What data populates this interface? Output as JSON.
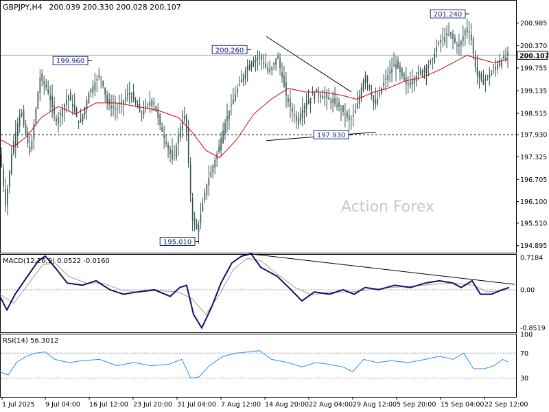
{
  "chart_data": {
    "type": "candlestick",
    "symbol_header": "GBPJPY,H4",
    "ohlc_header": "200.039 200.330 200.028 200.107",
    "watermark": "Action Forex",
    "price_axis": {
      "range": [
        194.7,
        201.6
      ],
      "ticks": [
        "200.985",
        "200.370",
        "199.755",
        "199.135",
        "198.515",
        "197.930",
        "197.325",
        "196.705",
        "196.100",
        "195.510",
        "194.895"
      ],
      "tick_values": [
        200.985,
        200.37,
        199.755,
        199.135,
        198.515,
        197.93,
        197.325,
        196.705,
        196.1,
        195.51,
        194.895
      ],
      "current_price": "200.107",
      "current_price_value": 200.107
    },
    "time_axis_labels": [
      "1 Jul 2025",
      "9 Jul 04:00",
      "16 Jul 12:00",
      "23 Jul 20:00",
      "31 Jul 04:00",
      "7 Aug 12:00",
      "14 Aug 20:00",
      "22 Aug 04:00",
      "29 Aug 12:00",
      "5 Sep 20:00",
      "15 Sep 04:00",
      "22 Sep 12:00"
    ],
    "price_series_bars": 250,
    "price_path": [
      [
        0,
        197.4
      ],
      [
        8,
        196.0
      ],
      [
        18,
        197.6
      ],
      [
        30,
        198.6
      ],
      [
        44,
        197.4
      ],
      [
        58,
        199.5
      ],
      [
        68,
        199.2
      ],
      [
        82,
        198.3
      ],
      [
        100,
        199.0
      ],
      [
        116,
        198.2
      ],
      [
        130,
        199.1
      ],
      [
        146,
        199.6
      ],
      [
        156,
        198.8
      ],
      [
        170,
        198.6
      ],
      [
        188,
        199.1
      ],
      [
        205,
        198.5
      ],
      [
        222,
        198.9
      ],
      [
        238,
        197.9
      ],
      [
        252,
        197.2
      ],
      [
        262,
        198.1
      ],
      [
        270,
        198.5
      ],
      [
        280,
        195.6
      ],
      [
        288,
        195.3
      ],
      [
        300,
        196.5
      ],
      [
        316,
        197.4
      ],
      [
        330,
        198.4
      ],
      [
        346,
        199.2
      ],
      [
        360,
        199.8
      ],
      [
        378,
        200.1
      ],
      [
        392,
        199.6
      ],
      [
        404,
        200.1
      ],
      [
        418,
        198.9
      ],
      [
        432,
        198.3
      ],
      [
        446,
        198.8
      ],
      [
        460,
        199.1
      ],
      [
        478,
        198.9
      ],
      [
        494,
        198.7
      ],
      [
        510,
        198.3
      ],
      [
        518,
        198.6
      ],
      [
        532,
        199.6
      ],
      [
        546,
        198.7
      ],
      [
        560,
        199.4
      ],
      [
        576,
        199.9
      ],
      [
        592,
        199.3
      ],
      [
        610,
        199.6
      ],
      [
        628,
        199.9
      ],
      [
        640,
        200.5
      ],
      [
        656,
        200.7
      ],
      [
        668,
        200.3
      ],
      [
        680,
        200.9
      ],
      [
        686,
        200.6
      ],
      [
        694,
        199.6
      ],
      [
        702,
        199.4
      ],
      [
        716,
        199.6
      ],
      [
        726,
        199.9
      ],
      [
        740,
        200.1
      ]
    ],
    "moving_average_path": [
      [
        0,
        197.8
      ],
      [
        20,
        197.6
      ],
      [
        40,
        197.9
      ],
      [
        60,
        198.4
      ],
      [
        85,
        198.7
      ],
      [
        110,
        198.5
      ],
      [
        140,
        198.8
      ],
      [
        170,
        198.8
      ],
      [
        200,
        198.7
      ],
      [
        230,
        198.6
      ],
      [
        260,
        198.4
      ],
      [
        280,
        198.0
      ],
      [
        300,
        197.5
      ],
      [
        320,
        197.3
      ],
      [
        345,
        197.8
      ],
      [
        370,
        198.5
      ],
      [
        395,
        198.9
      ],
      [
        420,
        199.2
      ],
      [
        445,
        199.1
      ],
      [
        470,
        199.1
      ],
      [
        500,
        199.0
      ],
      [
        520,
        198.9
      ],
      [
        545,
        199.1
      ],
      [
        565,
        199.2
      ],
      [
        590,
        199.4
      ],
      [
        615,
        199.5
      ],
      [
        640,
        199.7
      ],
      [
        660,
        199.9
      ],
      [
        680,
        200.1
      ],
      [
        700,
        200.0
      ],
      [
        720,
        199.9
      ],
      [
        740,
        200.0
      ]
    ],
    "annotations": [
      {
        "label": "199.960",
        "value": 199.96,
        "bar": 130
      },
      {
        "label": "200.260",
        "value": 200.26,
        "bar": 362
      },
      {
        "label": "201.240",
        "value": 201.24,
        "bar": 680
      },
      {
        "label": "197.930",
        "value": 197.93,
        "bar": 510
      },
      {
        "label": "195.010",
        "value": 195.01,
        "bar": 286
      }
    ],
    "horizontal_lines": [
      {
        "value": 197.93,
        "style": "dashed"
      },
      {
        "value": 200.107,
        "style": "solid"
      }
    ],
    "trendlines": [
      {
        "from": [
          388,
          200.62
        ],
        "to": [
          512,
          199.1
        ]
      },
      {
        "from": [
          388,
          197.77
        ],
        "to": [
          548,
          198.0
        ]
      }
    ],
    "macd": {
      "header": "MACD(12,26,9) 0.0522 -0.0160",
      "range": [
        -0.95,
        0.78
      ],
      "ticks": [
        "0.7184",
        "0.00",
        "-0.8519"
      ],
      "tick_values": [
        0.7184,
        0.0,
        -0.8519
      ],
      "main_path": [
        [
          0,
          -0.15
        ],
        [
          10,
          -0.45
        ],
        [
          22,
          -0.1
        ],
        [
          40,
          0.3
        ],
        [
          56,
          0.65
        ],
        [
          66,
          0.75
        ],
        [
          80,
          0.5
        ],
        [
          98,
          0.15
        ],
        [
          120,
          0.1
        ],
        [
          140,
          0.2
        ],
        [
          160,
          0.0
        ],
        [
          180,
          -0.1
        ],
        [
          200,
          -0.05
        ],
        [
          225,
          0.0
        ],
        [
          248,
          -0.15
        ],
        [
          262,
          0.05
        ],
        [
          272,
          0.1
        ],
        [
          282,
          -0.55
        ],
        [
          294,
          -0.85
        ],
        [
          308,
          -0.4
        ],
        [
          322,
          0.15
        ],
        [
          338,
          0.6
        ],
        [
          352,
          0.75
        ],
        [
          366,
          0.8
        ],
        [
          380,
          0.5
        ],
        [
          404,
          0.3
        ],
        [
          424,
          0.0
        ],
        [
          440,
          -0.25
        ],
        [
          458,
          -0.05
        ],
        [
          480,
          -0.1
        ],
        [
          500,
          0.0
        ],
        [
          516,
          -0.1
        ],
        [
          532,
          0.05
        ],
        [
          552,
          0.0
        ],
        [
          575,
          0.1
        ],
        [
          598,
          0.05
        ],
        [
          620,
          0.15
        ],
        [
          640,
          0.2
        ],
        [
          660,
          0.15
        ],
        [
          672,
          0.05
        ],
        [
          688,
          0.2
        ],
        [
          700,
          -0.1
        ],
        [
          716,
          -0.1
        ],
        [
          732,
          0.0
        ],
        [
          742,
          0.05
        ]
      ],
      "signal_path": [
        [
          0,
          -0.1
        ],
        [
          20,
          -0.3
        ],
        [
          40,
          0.1
        ],
        [
          62,
          0.55
        ],
        [
          80,
          0.6
        ],
        [
          100,
          0.3
        ],
        [
          125,
          0.15
        ],
        [
          150,
          0.15
        ],
        [
          175,
          0.0
        ],
        [
          200,
          -0.05
        ],
        [
          230,
          -0.02
        ],
        [
          260,
          -0.05
        ],
        [
          280,
          -0.2
        ],
        [
          300,
          -0.55
        ],
        [
          320,
          -0.1
        ],
        [
          340,
          0.45
        ],
        [
          360,
          0.7
        ],
        [
          380,
          0.65
        ],
        [
          404,
          0.35
        ],
        [
          430,
          0.05
        ],
        [
          455,
          -0.12
        ],
        [
          480,
          -0.05
        ],
        [
          510,
          -0.05
        ],
        [
          540,
          0.0
        ],
        [
          570,
          0.05
        ],
        [
          600,
          0.08
        ],
        [
          630,
          0.12
        ],
        [
          660,
          0.15
        ],
        [
          690,
          0.1
        ],
        [
          710,
          -0.05
        ],
        [
          742,
          0.0
        ]
      ],
      "trendline": {
        "from": [
          364,
          0.8
        ],
        "to": [
          750,
          0.12
        ]
      }
    },
    "rsi": {
      "header": "RSI(14) 56.3012",
      "range": [
        0,
        100
      ],
      "ticks": [
        "100",
        "70",
        "30"
      ],
      "tick_values": [
        100,
        70,
        30
      ],
      "levels": [
        70,
        30
      ],
      "path": [
        [
          0,
          40
        ],
        [
          12,
          35
        ],
        [
          24,
          55
        ],
        [
          38,
          65
        ],
        [
          52,
          70
        ],
        [
          66,
          72
        ],
        [
          80,
          60
        ],
        [
          100,
          55
        ],
        [
          120,
          58
        ],
        [
          145,
          60
        ],
        [
          170,
          50
        ],
        [
          195,
          55
        ],
        [
          220,
          50
        ],
        [
          245,
          52
        ],
        [
          265,
          60
        ],
        [
          278,
          30
        ],
        [
          290,
          32
        ],
        [
          305,
          50
        ],
        [
          325,
          65
        ],
        [
          345,
          70
        ],
        [
          362,
          72
        ],
        [
          378,
          74
        ],
        [
          396,
          60
        ],
        [
          420,
          55
        ],
        [
          440,
          48
        ],
        [
          460,
          55
        ],
        [
          480,
          52
        ],
        [
          500,
          48
        ],
        [
          514,
          40
        ],
        [
          530,
          60
        ],
        [
          550,
          55
        ],
        [
          570,
          58
        ],
        [
          595,
          55
        ],
        [
          620,
          60
        ],
        [
          640,
          65
        ],
        [
          660,
          60
        ],
        [
          676,
          70
        ],
        [
          690,
          45
        ],
        [
          706,
          45
        ],
        [
          720,
          50
        ],
        [
          732,
          60
        ],
        [
          740,
          56
        ]
      ]
    }
  }
}
